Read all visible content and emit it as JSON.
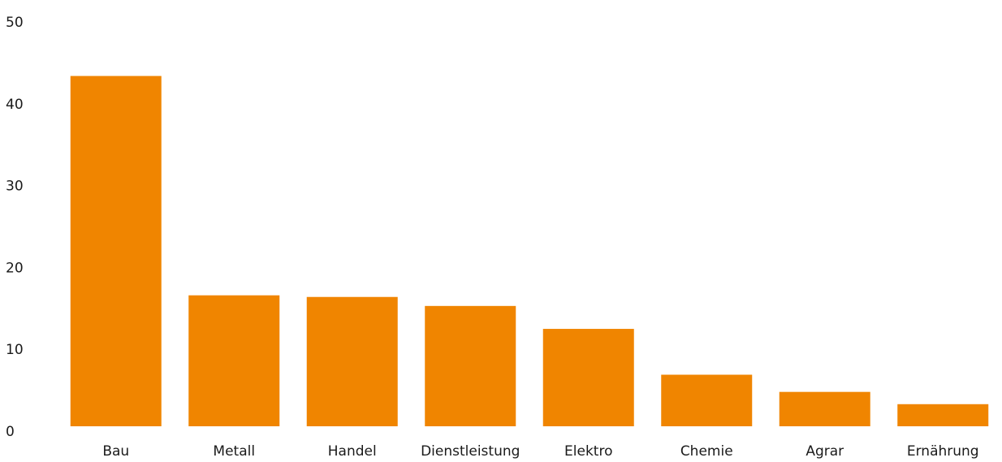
{
  "colors": {
    "bar": "#f08500",
    "text": "#1a1a1a",
    "background": "#ffffff"
  },
  "chart_data": {
    "type": "bar",
    "categories": [
      "Bau",
      "Metall",
      "Handel",
      "Dienstleistung",
      "Elektro",
      "Chemie",
      "Agrar",
      "Ernährung"
    ],
    "values": [
      42.8,
      16.0,
      15.8,
      14.7,
      11.9,
      6.3,
      4.2,
      2.7
    ],
    "ylim": [
      0,
      50
    ],
    "yticks": [
      0,
      10,
      20,
      30,
      40,
      50
    ],
    "grid": false,
    "legend": "none"
  }
}
